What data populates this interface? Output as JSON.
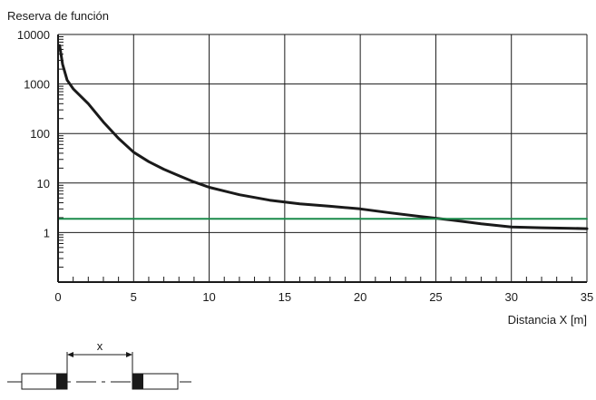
{
  "chart_data": {
    "type": "line",
    "ylabel": "Reserva de función",
    "xlabel": "Distancia X [m]",
    "y_scale": "log",
    "xlim": [
      0,
      35
    ],
    "ylim": [
      0.1,
      10000
    ],
    "x_ticks": [
      0,
      5,
      10,
      15,
      20,
      25,
      30,
      35
    ],
    "y_ticks": [
      1,
      10,
      100,
      1000,
      10000
    ],
    "grid": true,
    "series": [
      {
        "color": "#1a1a1a",
        "x": [
          0.1,
          0.3,
          0.6,
          1,
          2,
          3,
          4,
          5,
          6,
          7,
          8,
          9,
          10,
          12,
          14,
          16,
          18,
          20,
          22,
          24,
          26,
          28,
          30,
          32,
          34,
          35
        ],
        "y": [
          6000,
          2500,
          1200,
          800,
          400,
          170,
          80,
          42,
          27,
          19,
          14,
          10.5,
          8.2,
          5.8,
          4.5,
          3.8,
          3.4,
          3.0,
          2.5,
          2.1,
          1.8,
          1.5,
          1.3,
          1.25,
          1.22,
          1.2
        ]
      },
      {
        "color": "#1a8a4a",
        "x": [
          0,
          35
        ],
        "y": [
          1.9,
          1.9
        ]
      }
    ],
    "diagram": {
      "label": "x"
    }
  }
}
